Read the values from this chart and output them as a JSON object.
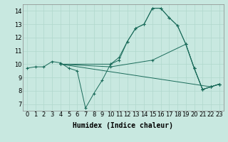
{
  "title": "",
  "xlabel": "Humidex (Indice chaleur)",
  "xlim": [
    -0.5,
    23.5
  ],
  "ylim": [
    6.5,
    14.5
  ],
  "xticks": [
    0,
    1,
    2,
    3,
    4,
    5,
    6,
    7,
    8,
    9,
    10,
    11,
    12,
    13,
    14,
    15,
    16,
    17,
    18,
    19,
    20,
    21,
    22,
    23
  ],
  "yticks": [
    7,
    8,
    9,
    10,
    11,
    12,
    13,
    14
  ],
  "bg_color": "#c8e8e0",
  "line_color": "#1a6b5a",
  "grid_color": "#b0d8cc",
  "lines": [
    {
      "x": [
        0,
        1,
        2,
        3,
        4,
        5,
        6,
        7,
        8,
        9,
        10,
        11,
        12,
        13,
        14,
        15,
        16,
        17,
        18,
        19,
        20,
        21,
        22,
        23
      ],
      "y": [
        9.7,
        9.8,
        9.8,
        10.2,
        10.1,
        9.7,
        9.5,
        6.7,
        7.8,
        8.8,
        10.0,
        10.3,
        11.7,
        12.7,
        13.0,
        14.2,
        14.2,
        13.5,
        12.9,
        11.5,
        9.7,
        8.1,
        8.3,
        8.5
      ]
    },
    {
      "x": [
        4,
        10,
        11,
        12,
        13,
        14,
        15,
        16,
        17,
        18,
        19,
        20,
        21,
        22,
        23
      ],
      "y": [
        10.0,
        10.0,
        10.5,
        11.7,
        12.7,
        13.0,
        14.2,
        14.2,
        13.5,
        12.9,
        11.5,
        9.7,
        8.1,
        8.3,
        8.5
      ]
    },
    {
      "x": [
        4,
        22,
        23
      ],
      "y": [
        10.0,
        8.3,
        8.5
      ]
    },
    {
      "x": [
        4,
        10,
        15,
        19,
        20,
        21,
        22,
        23
      ],
      "y": [
        10.0,
        9.8,
        10.3,
        11.5,
        9.7,
        8.1,
        8.3,
        8.5
      ]
    }
  ],
  "fontsize_xlabel": 7,
  "fontsize_ticks": 6
}
